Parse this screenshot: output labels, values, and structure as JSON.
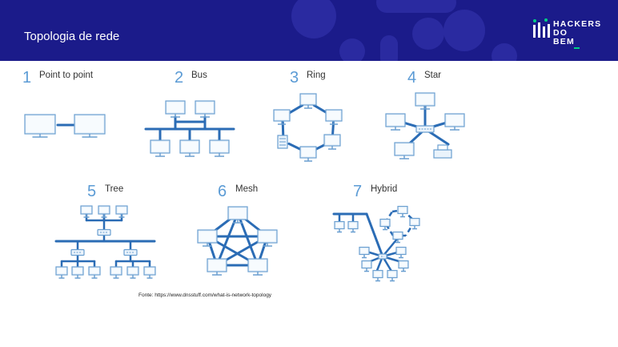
{
  "header": {
    "title": "Topologia de rede",
    "logo_lines": [
      "HACKERS",
      "DO",
      "BEM"
    ],
    "background_color": "#1b1b8a",
    "accent_color": "#00d084"
  },
  "topologies": [
    {
      "number": "1",
      "label": "Point to point",
      "icon": "point-to-point-diagram"
    },
    {
      "number": "2",
      "label": "Bus",
      "icon": "bus-diagram"
    },
    {
      "number": "3",
      "label": "Ring",
      "icon": "ring-diagram"
    },
    {
      "number": "4",
      "label": "Star",
      "icon": "star-diagram"
    },
    {
      "number": "5",
      "label": "Tree",
      "icon": "tree-diagram"
    },
    {
      "number": "6",
      "label": "Mesh",
      "icon": "mesh-diagram"
    },
    {
      "number": "7",
      "label": "Hybrid",
      "icon": "hybrid-diagram"
    }
  ],
  "colors": {
    "line": "#2b6cb5",
    "number": "#5b9bd5",
    "device_fill": "#eaf3fb",
    "device_stroke": "#6a9fd0"
  },
  "source": "Fonte: https://www.dnsstuff.com/what-is-network-topology"
}
